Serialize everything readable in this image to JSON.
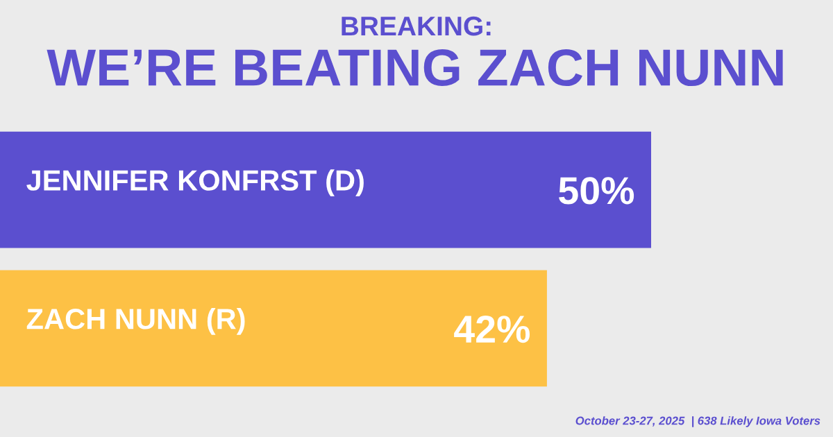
{
  "chart_data": {
    "type": "bar",
    "orientation": "horizontal",
    "title": "BREAKING:",
    "subtitle": "WE’RE BEATING ZACH NUNN",
    "categories": [
      "JENNIFER KONFRST (D)",
      "ZACH NUNN (R)"
    ],
    "values": [
      50,
      42
    ],
    "colors": [
      "#5b4fcf",
      "#fdc145"
    ],
    "value_labels": [
      "50%",
      "42%"
    ],
    "annotations": [
      "October 23-27, 2025  | 638 Likely Iowa Voters"
    ],
    "tick_labels": false,
    "legend": false
  }
}
